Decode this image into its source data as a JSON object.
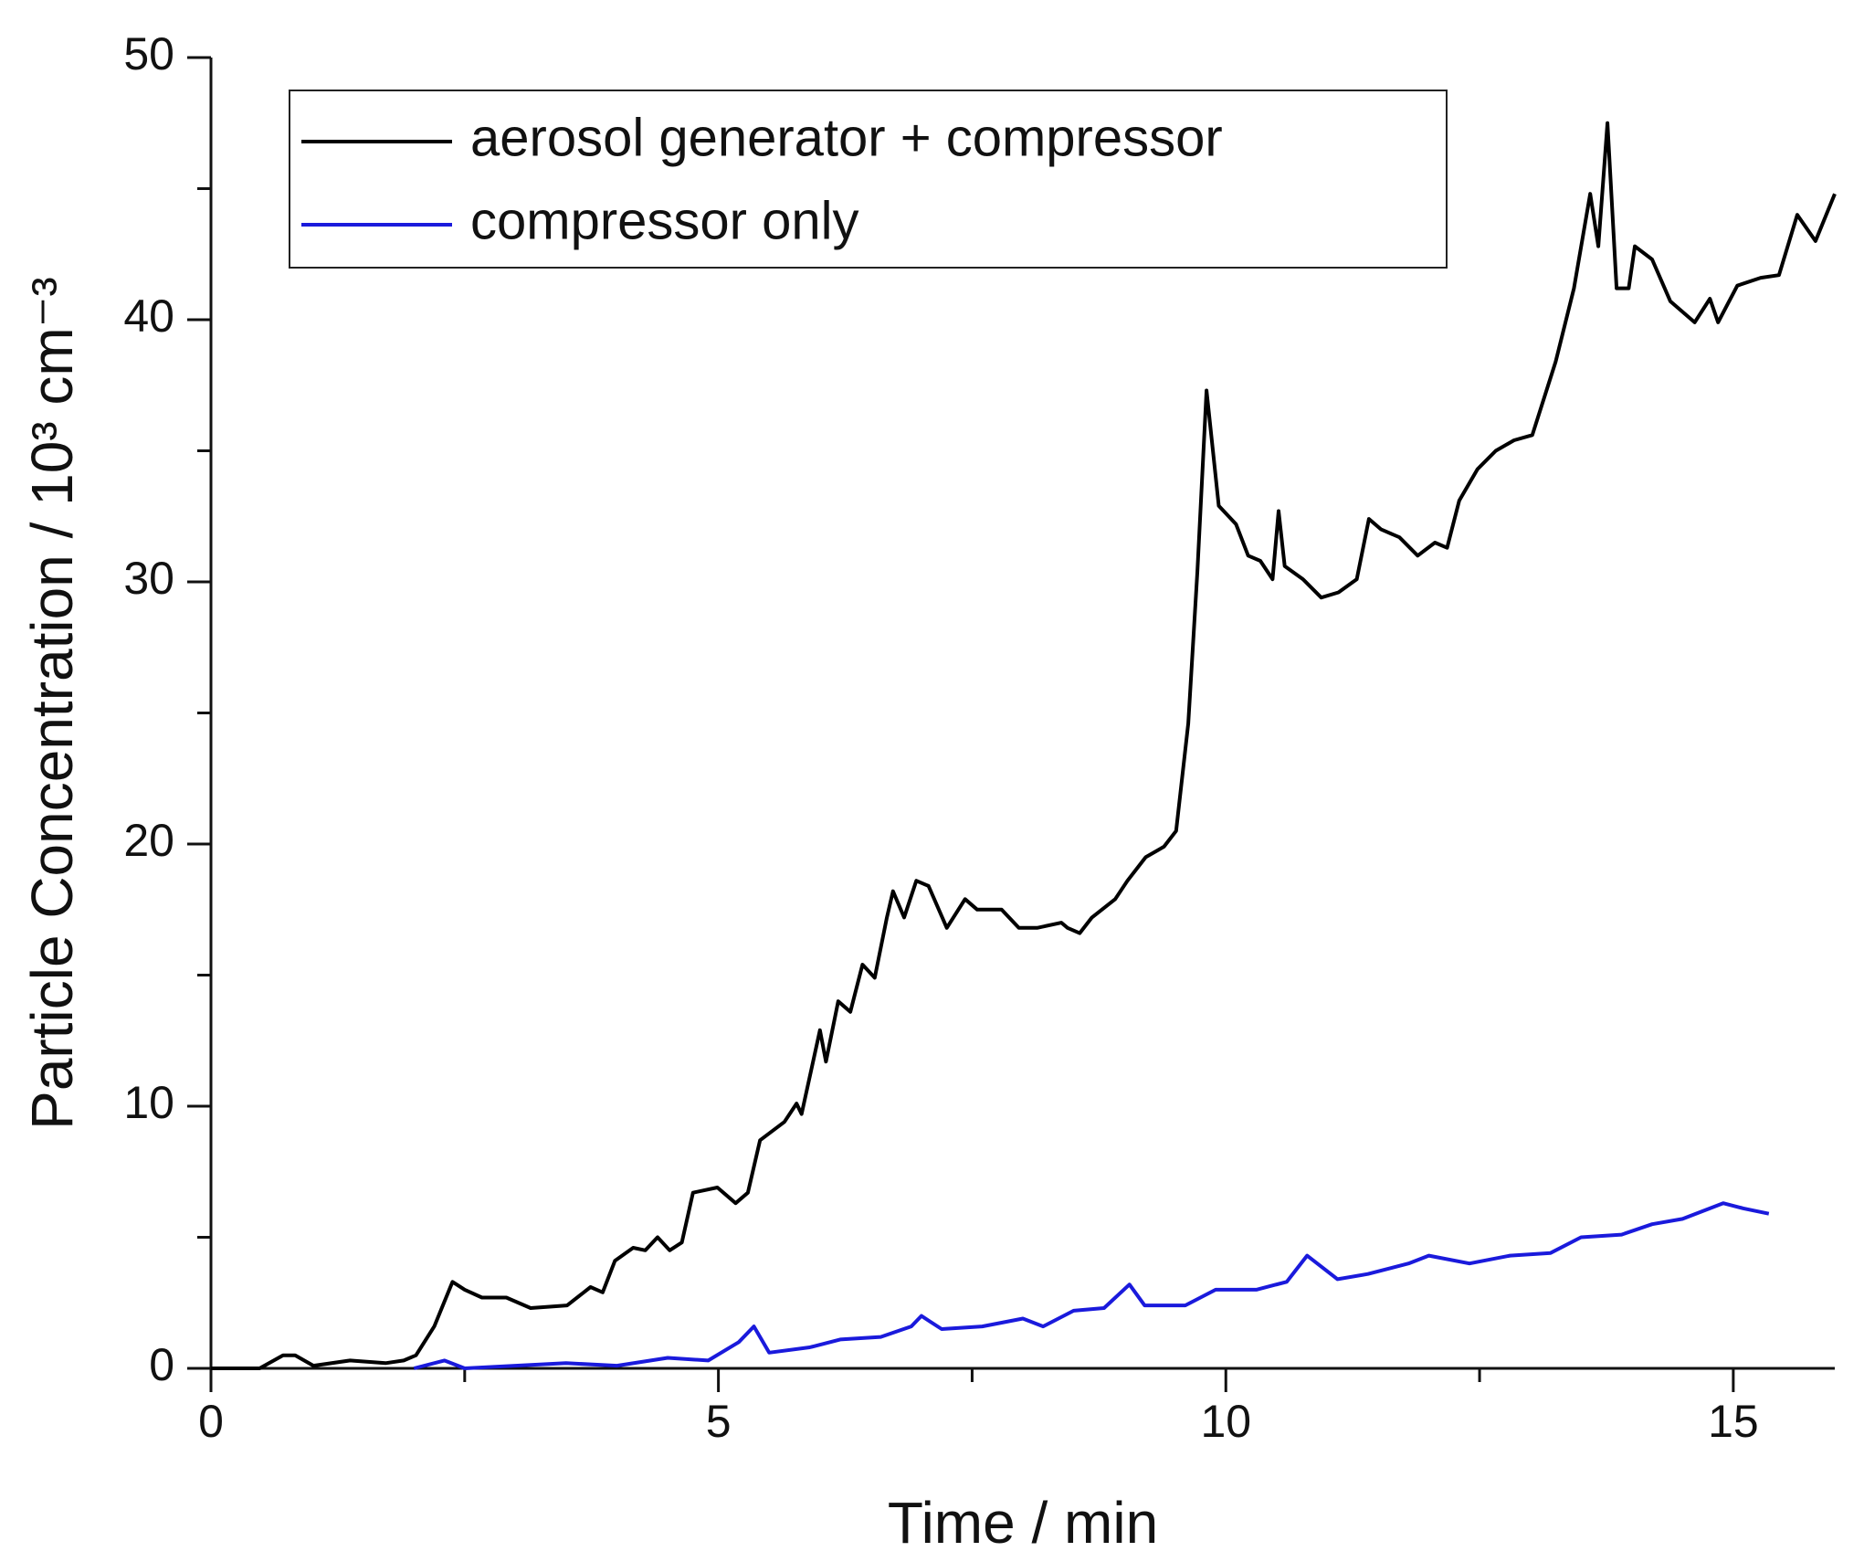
{
  "chart_data": {
    "type": "line",
    "xlabel": "Time / min",
    "ylabel": "Particle Concentration / 10³ cm⁻³",
    "xlim": [
      0,
      16
    ],
    "ylim": [
      0,
      50
    ],
    "xticks": [
      0,
      5,
      10,
      15
    ],
    "yticks": [
      0,
      10,
      20,
      30,
      40,
      50
    ],
    "xminorticks": [
      2.5,
      7.5,
      12.5
    ],
    "yminorticks": [
      5,
      15,
      25,
      35,
      45
    ],
    "grid": false,
    "legend": "upper left",
    "series": [
      {
        "name": "aerosol generator + compressor",
        "color": "#000000",
        "x": [
          0,
          0.48,
          0.71,
          0.83,
          1.01,
          1.37,
          1.72,
          1.9,
          2.02,
          2.2,
          2.38,
          2.5,
          2.67,
          2.91,
          3.15,
          3.51,
          3.74,
          3.86,
          3.98,
          4.16,
          4.28,
          4.4,
          4.52,
          4.64,
          4.75,
          4.99,
          5.17,
          5.29,
          5.41,
          5.65,
          5.77,
          5.82,
          6.0,
          6.06,
          6.18,
          6.3,
          6.42,
          6.54,
          6.66,
          6.72,
          6.83,
          6.95,
          7.07,
          7.25,
          7.43,
          7.55,
          7.79,
          7.96,
          8.14,
          8.38,
          8.44,
          8.56,
          8.68,
          8.91,
          9.03,
          9.21,
          9.39,
          9.51,
          9.63,
          9.72,
          9.81,
          9.93,
          10.1,
          10.22,
          10.34,
          10.46,
          10.52,
          10.58,
          10.76,
          10.94,
          11.11,
          11.29,
          11.41,
          11.53,
          11.71,
          11.89,
          12.06,
          12.18,
          12.3,
          12.48,
          12.66,
          12.84,
          13.02,
          13.25,
          13.43,
          13.59,
          13.67,
          13.76,
          13.85,
          13.97,
          14.03,
          14.2,
          14.38,
          14.62,
          14.77,
          14.85,
          15.04,
          15.27,
          15.45,
          15.63,
          15.81,
          16.0
        ],
        "values": [
          0,
          0,
          0.5,
          0.5,
          0.1,
          0.3,
          0.2,
          0.3,
          0.5,
          1.6,
          3.3,
          3.0,
          2.7,
          2.7,
          2.3,
          2.4,
          3.1,
          2.9,
          4.1,
          4.6,
          4.5,
          5.0,
          4.5,
          4.8,
          6.7,
          6.9,
          6.3,
          6.7,
          8.7,
          9.4,
          10.1,
          9.7,
          12.9,
          11.7,
          14.0,
          13.6,
          15.4,
          14.9,
          17.2,
          18.2,
          17.2,
          18.6,
          18.4,
          16.8,
          17.9,
          17.5,
          17.5,
          16.8,
          16.8,
          17.0,
          16.8,
          16.6,
          17.2,
          17.9,
          18.6,
          19.5,
          19.9,
          20.5,
          24.6,
          30.4,
          37.3,
          32.9,
          32.2,
          31.0,
          30.8,
          30.1,
          32.7,
          30.6,
          30.1,
          29.4,
          29.6,
          30.1,
          32.4,
          32.0,
          31.7,
          31.0,
          31.5,
          31.3,
          33.1,
          34.3,
          35.0,
          35.4,
          35.6,
          38.4,
          41.2,
          44.8,
          42.8,
          47.5,
          41.2,
          41.2,
          42.8,
          42.3,
          40.7,
          39.9,
          40.8,
          39.9,
          41.3,
          41.6,
          41.7,
          44.0,
          43.0,
          44.8
        ]
      },
      {
        "name": "compressor only",
        "color": "#1a1adc",
        "x": [
          2.0,
          2.3,
          2.5,
          3.0,
          3.5,
          4.0,
          4.5,
          4.9,
          5.2,
          5.35,
          5.5,
          5.9,
          6.2,
          6.6,
          6.9,
          7.0,
          7.2,
          7.6,
          8.0,
          8.2,
          8.5,
          8.8,
          9.05,
          9.2,
          9.6,
          9.9,
          10.3,
          10.6,
          10.8,
          11.1,
          11.4,
          11.8,
          12.0,
          12.4,
          12.8,
          13.2,
          13.5,
          13.9,
          14.2,
          14.5,
          14.9,
          15.1,
          15.35
        ],
        "values": [
          0,
          0.3,
          0,
          0.1,
          0.2,
          0.1,
          0.4,
          0.3,
          1.0,
          1.6,
          0.6,
          0.8,
          1.1,
          1.2,
          1.6,
          2.0,
          1.5,
          1.6,
          1.9,
          1.6,
          2.2,
          2.3,
          3.2,
          2.4,
          2.4,
          3.0,
          3.0,
          3.3,
          4.3,
          3.4,
          3.6,
          4.0,
          4.3,
          4.0,
          4.3,
          4.4,
          5.0,
          5.1,
          5.5,
          5.7,
          6.3,
          6.1,
          5.9
        ]
      }
    ]
  }
}
